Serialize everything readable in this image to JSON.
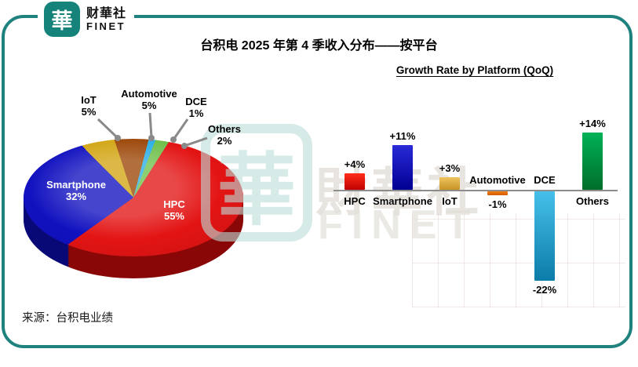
{
  "logo": {
    "badge_char": "華",
    "name_zh": "财華社",
    "name_en": "FINET"
  },
  "header": {
    "title": "台积电 2025 年第 4 季收入分布——按平台"
  },
  "footer": {
    "source": "来源：台积电业绩"
  },
  "watermark": {
    "badge_char": "華",
    "text_zh": "財華社",
    "text_en": "FINET"
  },
  "chart_data": [
    {
      "type": "pie",
      "title": "台积电 2025 年第 4 季收入分布——按平台",
      "start_angle_deg": -10,
      "unit": "% of revenue",
      "slices": [
        {
          "name": "Automotive",
          "value": 5,
          "label": "5%",
          "color": "#9c4708",
          "label_placement": "outside"
        },
        {
          "name": "DCE",
          "value": 1,
          "label": "1%",
          "color": "#2aaee6",
          "label_placement": "outside"
        },
        {
          "name": "Others",
          "value": 2,
          "label": "2%",
          "color": "#6fc04b",
          "label_placement": "outside"
        },
        {
          "name": "HPC",
          "value": 55,
          "label": "55%",
          "color": "#e31414",
          "label_placement": "inside"
        },
        {
          "name": "Smartphone",
          "value": 32,
          "label": "32%",
          "color": "#1111c0",
          "label_placement": "inside"
        },
        {
          "name": "IoT",
          "value": 5,
          "label": "5%",
          "color": "#d2a513",
          "label_placement": "outside"
        }
      ]
    },
    {
      "type": "bar",
      "title": "Growth Rate by Platform (QoQ)",
      "unit": "%",
      "ylim": [
        -25,
        16
      ],
      "grid": false,
      "axis_style": "zero-baseline",
      "bars": [
        {
          "name": "HPC",
          "value": 4,
          "label": "+4%",
          "color": "#ff2d1a",
          "color2": "#c00000"
        },
        {
          "name": "Smartphone",
          "value": 11,
          "label": "+11%",
          "color": "#2a2ad8",
          "color2": "#000092"
        },
        {
          "name": "IoT",
          "value": 3,
          "label": "+3%",
          "color": "#eec35e",
          "color2": "#c79325"
        },
        {
          "name": "Automotive",
          "value": -1,
          "label": "-1%",
          "color": "#f07b10",
          "color2": "#d25c00"
        },
        {
          "name": "DCE",
          "value": -22,
          "label": "-22%",
          "color": "#45c0ea",
          "color2": "#0c7ca8"
        },
        {
          "name": "Others",
          "value": 14,
          "label": "+14%",
          "color": "#00b158",
          "color2": "#006e2c"
        }
      ]
    }
  ]
}
